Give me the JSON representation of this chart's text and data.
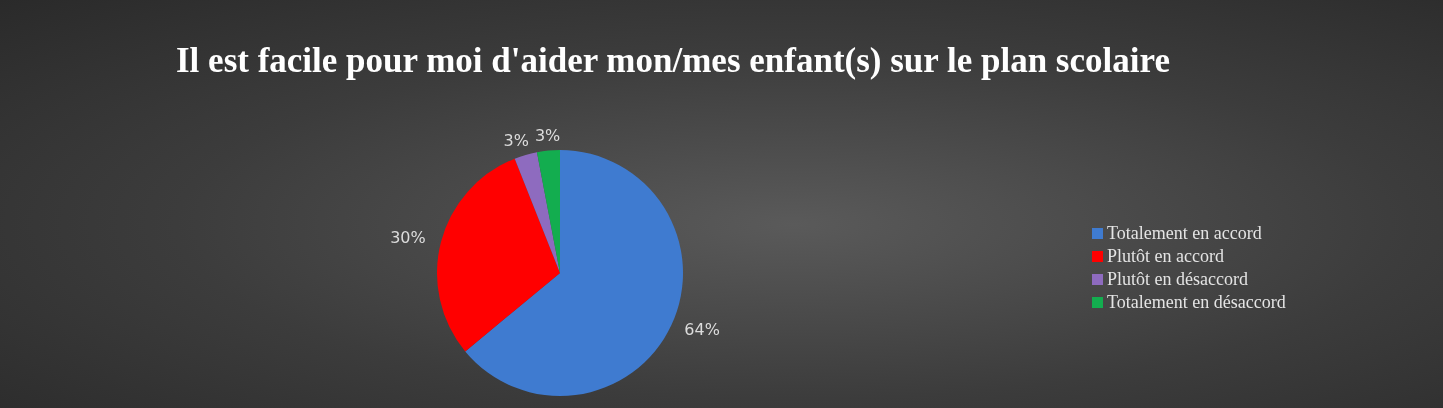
{
  "chart_data": {
    "type": "pie",
    "title": "Il est facile pour moi d'aider mon/mes enfant(s) sur le plan scolaire",
    "categories": [
      "Totalement en accord",
      "Plutôt en accord",
      "Plutôt en désaccord",
      "Totalement en désaccord"
    ],
    "values": [
      64,
      30,
      3,
      3
    ],
    "colors": [
      "#3f7bd0",
      "#ff0000",
      "#8e6bbf",
      "#13ad4f"
    ],
    "value_labels": [
      "64%",
      "30%",
      "3%",
      "3%"
    ],
    "legend": "right"
  }
}
